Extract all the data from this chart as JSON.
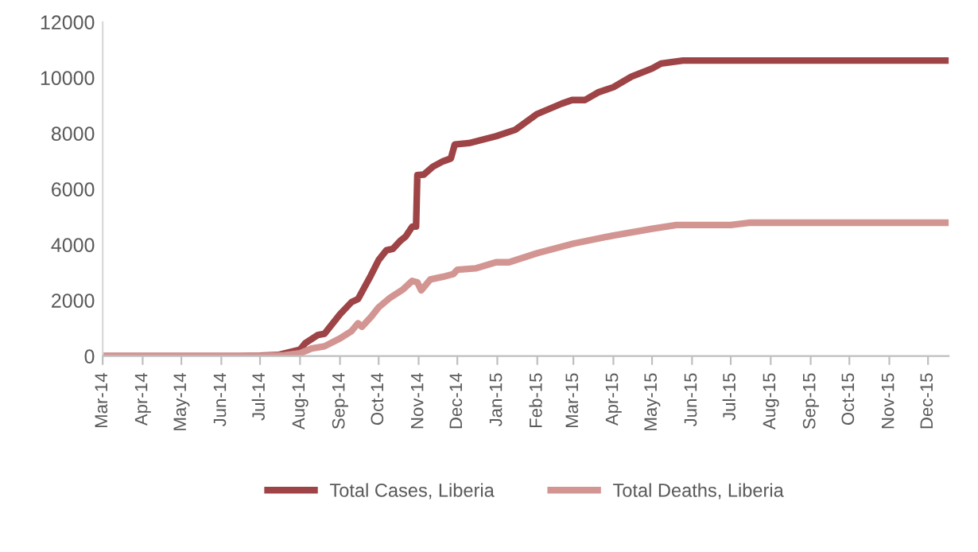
{
  "chart_data": {
    "type": "line",
    "x": [
      "2014-03-01",
      "2014-06-15",
      "2014-07-01",
      "2014-07-15",
      "2014-08-01",
      "2014-08-05",
      "2014-08-15",
      "2014-08-20",
      "2014-09-01",
      "2014-09-10",
      "2014-09-15",
      "2014-09-25",
      "2014-10-01",
      "2014-10-07",
      "2014-10-12",
      "2014-10-18",
      "2014-10-22",
      "2014-10-27",
      "2014-10-30",
      "2014-10-31",
      "2014-11-05",
      "2014-11-12",
      "2014-11-20",
      "2014-11-26",
      "2014-11-29",
      "2014-12-10",
      "2014-12-31",
      "2015-01-15",
      "2015-02-01",
      "2015-02-20",
      "2015-02-28",
      "2015-03-10",
      "2015-03-20",
      "2015-04-01",
      "2015-04-15",
      "2015-05-01",
      "2015-05-08",
      "2015-05-25",
      "2015-12-17"
    ],
    "series": [
      {
        "name": "Total Cases, Liberia",
        "color": "#9e4446",
        "values": [
          0,
          0,
          10,
          40,
          230,
          460,
          760,
          800,
          1500,
          1940,
          2050,
          2900,
          3450,
          3800,
          3850,
          4150,
          4300,
          4650,
          4650,
          6500,
          6520,
          6800,
          7000,
          7100,
          7600,
          7650,
          7900,
          8130,
          8700,
          9070,
          9200,
          9200,
          9470,
          9660,
          10040,
          10330,
          10510,
          10620,
          10620
        ]
      },
      {
        "name": "Total Deaths, Liberia",
        "color": "#d39592",
        "x": [
          "2014-03-01",
          "2014-07-01",
          "2014-07-20",
          "2014-08-01",
          "2014-08-10",
          "2014-08-20",
          "2014-09-01",
          "2014-09-10",
          "2014-09-15",
          "2014-09-18",
          "2014-09-25",
          "2014-10-01",
          "2014-10-10",
          "2014-10-20",
          "2014-10-27",
          "2014-10-31",
          "2014-11-03",
          "2014-11-10",
          "2014-11-20",
          "2014-11-28",
          "2014-12-01",
          "2014-12-15",
          "2014-12-31",
          "2015-01-10",
          "2015-02-01",
          "2015-03-01",
          "2015-04-01",
          "2015-05-01",
          "2015-05-20",
          "2015-07-01",
          "2015-07-15",
          "2015-12-17"
        ],
        "values": [
          0,
          0,
          30,
          100,
          270,
          350,
          630,
          900,
          1180,
          1050,
          1400,
          1750,
          2100,
          2400,
          2700,
          2650,
          2360,
          2750,
          2850,
          2950,
          3100,
          3150,
          3370,
          3370,
          3700,
          4040,
          4330,
          4570,
          4710,
          4710,
          4790,
          4790
        ]
      }
    ],
    "xlim": [
      "2014-03-01",
      "2015-12-17"
    ],
    "xticks": [
      {
        "value": "2014-03-01",
        "label": "Mar-14"
      },
      {
        "value": "2014-04-01",
        "label": "Apr-14"
      },
      {
        "value": "2014-05-01",
        "label": "May-14"
      },
      {
        "value": "2014-06-01",
        "label": "Jun-14"
      },
      {
        "value": "2014-07-01",
        "label": "Jul-14"
      },
      {
        "value": "2014-08-01",
        "label": "Aug-14"
      },
      {
        "value": "2014-09-01",
        "label": "Sep-14"
      },
      {
        "value": "2014-10-01",
        "label": "Oct-14"
      },
      {
        "value": "2014-11-01",
        "label": "Nov-14"
      },
      {
        "value": "2014-12-01",
        "label": "Dec-14"
      },
      {
        "value": "2015-01-01",
        "label": "Jan-15"
      },
      {
        "value": "2015-02-01",
        "label": "Feb-15"
      },
      {
        "value": "2015-03-01",
        "label": "Mar-15"
      },
      {
        "value": "2015-04-01",
        "label": "Apr-15"
      },
      {
        "value": "2015-05-01",
        "label": "May-15"
      },
      {
        "value": "2015-06-01",
        "label": "Jun-15"
      },
      {
        "value": "2015-07-01",
        "label": "Jul-15"
      },
      {
        "value": "2015-08-01",
        "label": "Aug-15"
      },
      {
        "value": "2015-09-01",
        "label": "Sep-15"
      },
      {
        "value": "2015-10-01",
        "label": "Oct-15"
      },
      {
        "value": "2015-11-01",
        "label": "Nov-15"
      },
      {
        "value": "2015-12-01",
        "label": "Dec-15"
      }
    ],
    "ylim": [
      0,
      12000
    ],
    "yticks": [
      0,
      2000,
      4000,
      6000,
      8000,
      10000,
      12000
    ],
    "grid": false,
    "legend": "bottom",
    "marker": "none",
    "line_style": "solid"
  }
}
